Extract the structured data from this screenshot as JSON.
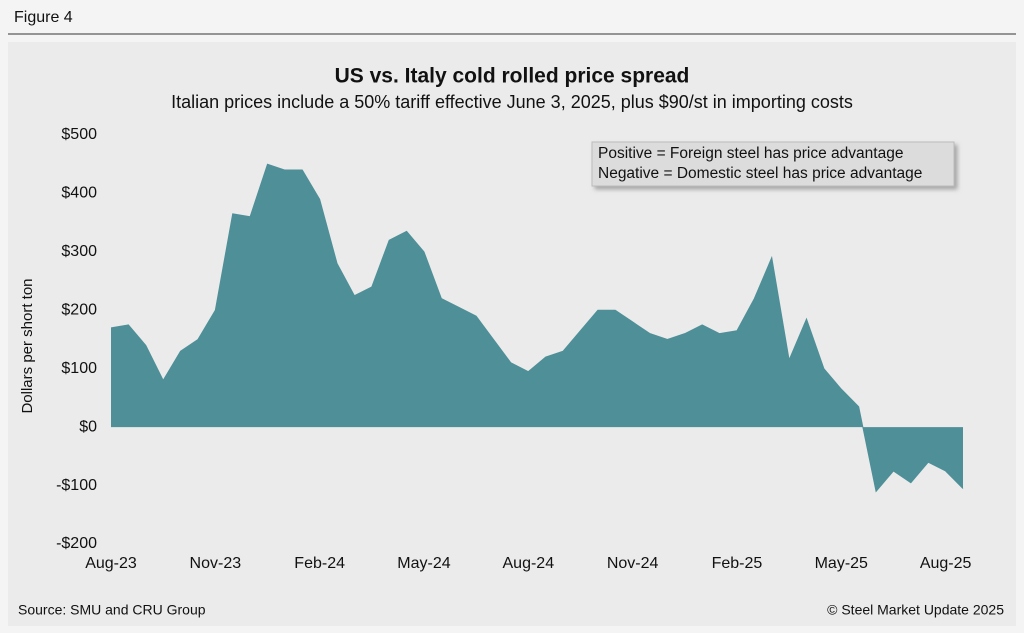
{
  "figure_label": "Figure 4",
  "source": "Source: SMU and CRU Group",
  "copyright": "© Steel Market Update 2025",
  "chart_data": {
    "type": "area",
    "title": "US vs. Italy cold rolled price spread",
    "subtitle": "Italian prices include a 50% tariff effective June 3, 2025, plus $90/st in importing costs",
    "y_label": "Dollars per short ton",
    "annotations": [
      "Positive = Foreign steel has price advantage",
      "Negative = Domestic steel has price advantage"
    ],
    "categories": [
      "Aug-23",
      null,
      null,
      null,
      null,
      null,
      "Nov-23",
      null,
      null,
      null,
      null,
      null,
      "Feb-24",
      null,
      null,
      null,
      null,
      null,
      "May-24",
      null,
      null,
      null,
      null,
      null,
      "Aug-24",
      null,
      null,
      null,
      null,
      null,
      "Nov-24",
      null,
      null,
      null,
      null,
      null,
      "Feb-25",
      null,
      null,
      null,
      null,
      null,
      "May-25",
      null,
      null,
      null,
      null,
      null,
      "Aug-25",
      null
    ],
    "values": [
      170,
      175,
      140,
      80,
      130,
      150,
      200,
      365,
      360,
      450,
      440,
      440,
      390,
      280,
      225,
      240,
      320,
      335,
      300,
      220,
      205,
      190,
      150,
      110,
      95,
      120,
      130,
      165,
      200,
      200,
      180,
      160,
      150,
      160,
      175,
      160,
      165,
      220,
      290,
      115,
      185,
      100,
      65,
      35,
      -110,
      -75,
      -95,
      -60,
      -75,
      -105
    ],
    "color": "#4e8f98",
    "ylim": [
      -200,
      500
    ],
    "yticks": [
      {
        "value": -200,
        "label": "-$200"
      },
      {
        "value": -100,
        "label": "-$100"
      },
      {
        "value": 0,
        "label": "$0"
      },
      {
        "value": 100,
        "label": "$100"
      },
      {
        "value": 200,
        "label": "$200"
      },
      {
        "value": 300,
        "label": "$300"
      },
      {
        "value": 400,
        "label": "$400"
      },
      {
        "value": 500,
        "label": "$500"
      }
    ]
  }
}
